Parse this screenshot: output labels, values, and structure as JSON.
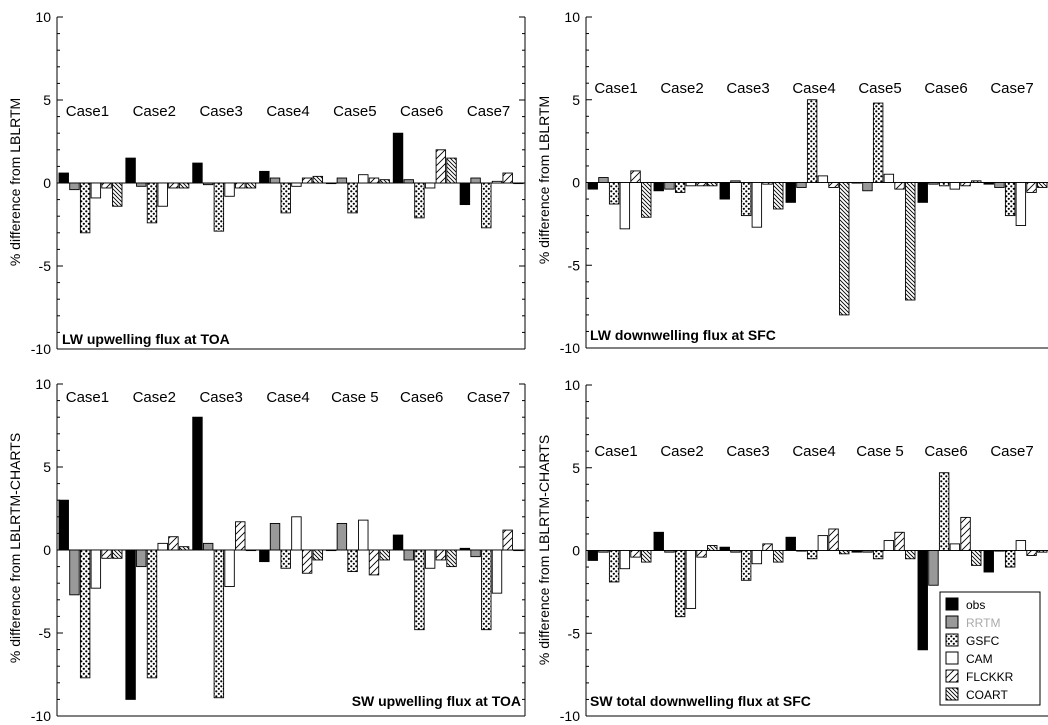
{
  "legend": [
    {
      "key": "obs",
      "label": "obs"
    },
    {
      "key": "rrtm",
      "label": "RRTM"
    },
    {
      "key": "gsfc",
      "label": "GSFC"
    },
    {
      "key": "cam",
      "label": "CAM"
    },
    {
      "key": "flckkr",
      "label": "FLCKKR"
    },
    {
      "key": "coart",
      "label": "COART"
    }
  ],
  "colors": {
    "obs": "#000000",
    "rrtm": "#999999",
    "legend_rrtm_text": "#aaaaaa",
    "axis": "#000000"
  },
  "chart_data": [
    {
      "type": "bar",
      "title": "LW upwelling flux at TOA",
      "ylabel": "% difference from LBLRTM",
      "ylim": [
        -10,
        10
      ],
      "yticks": [
        -10,
        -5,
        0,
        5,
        10
      ],
      "categories": [
        "Case1",
        "Case2",
        "Case3",
        "Case4",
        "Case5",
        "Case6",
        "Case7"
      ],
      "series": [
        {
          "name": "obs",
          "values": [
            0.6,
            1.5,
            1.2,
            0.7,
            0.0,
            3.0,
            -1.3
          ]
        },
        {
          "name": "RRTM",
          "values": [
            -0.4,
            -0.2,
            -0.1,
            0.3,
            0.3,
            0.2,
            0.3
          ]
        },
        {
          "name": "GSFC",
          "values": [
            -3.0,
            -2.4,
            -2.9,
            -1.8,
            -1.8,
            -2.1,
            -2.7
          ]
        },
        {
          "name": "CAM",
          "values": [
            -0.9,
            -1.4,
            -0.8,
            -0.2,
            0.5,
            -0.3,
            0.1
          ]
        },
        {
          "name": "FLCKKR",
          "values": [
            -0.3,
            -0.3,
            -0.3,
            0.3,
            0.3,
            2.0,
            0.6
          ]
        },
        {
          "name": "COART",
          "values": [
            -1.4,
            -0.3,
            -0.3,
            0.4,
            0.2,
            1.5,
            0.0
          ]
        }
      ]
    },
    {
      "type": "bar",
      "title": "LW downwelling flux at SFC",
      "ylabel": "% difference from LBLRTM",
      "ylim": [
        -10,
        10
      ],
      "yticks": [
        -10,
        -5,
        0,
        5,
        10
      ],
      "categories": [
        "Case1",
        "Case2",
        "Case3",
        "Case4",
        "Case5",
        "Case6",
        "Case7"
      ],
      "series": [
        {
          "name": "obs",
          "values": [
            -0.4,
            -0.5,
            -1.0,
            -1.2,
            0.0,
            -1.2,
            -0.1
          ]
        },
        {
          "name": "RRTM",
          "values": [
            0.3,
            -0.4,
            0.1,
            -0.3,
            -0.5,
            -0.1,
            -0.3
          ]
        },
        {
          "name": "GSFC",
          "values": [
            -1.3,
            -0.6,
            -2.0,
            5.0,
            4.8,
            -0.2,
            -2.0
          ]
        },
        {
          "name": "CAM",
          "values": [
            -2.8,
            -0.2,
            -2.7,
            0.4,
            0.5,
            -0.4,
            -2.6
          ]
        },
        {
          "name": "FLCKKR",
          "values": [
            0.7,
            -0.2,
            -0.1,
            -0.3,
            -0.4,
            -0.2,
            -0.6
          ]
        },
        {
          "name": "COART",
          "values": [
            -2.1,
            -0.2,
            -1.6,
            -8.0,
            -7.1,
            0.1,
            -0.3
          ]
        }
      ]
    },
    {
      "type": "bar",
      "title": "SW upwelling flux at TOA",
      "ylabel": "% difference from LBLRTM-CHARTS",
      "ylim": [
        -10,
        10
      ],
      "yticks": [
        -10,
        -5,
        0,
        5,
        10
      ],
      "categories": [
        "Case1",
        "Case2",
        "Case3",
        "Case4",
        "Case 5",
        "Case6",
        "Case7"
      ],
      "series": [
        {
          "name": "obs",
          "values": [
            3.0,
            -9.0,
            8.0,
            -0.7,
            0.0,
            0.9,
            0.1
          ]
        },
        {
          "name": "RRTM",
          "values": [
            -2.7,
            -1.0,
            0.4,
            1.6,
            1.6,
            -0.6,
            -0.4
          ]
        },
        {
          "name": "GSFC",
          "values": [
            -7.7,
            -7.7,
            -8.9,
            -1.1,
            -1.3,
            -4.8,
            -4.8
          ]
        },
        {
          "name": "CAM",
          "values": [
            -2.3,
            0.4,
            -2.2,
            2.0,
            1.8,
            -1.1,
            -2.6
          ]
        },
        {
          "name": "FLCKKR",
          "values": [
            -0.5,
            0.8,
            1.7,
            -1.4,
            -1.5,
            -0.6,
            1.2
          ]
        },
        {
          "name": "COART",
          "values": [
            -0.5,
            0.2,
            0.0,
            -0.6,
            -0.6,
            -1.0,
            0.0
          ]
        }
      ]
    },
    {
      "type": "bar",
      "title": "SW total downwelling flux at SFC",
      "ylabel": "% difference from LBLRTM-CHARTS",
      "ylim": [
        -10,
        10
      ],
      "yticks": [
        -10,
        -5,
        0,
        5,
        10
      ],
      "categories": [
        "Case1",
        "Case2",
        "Case3",
        "Case4",
        "Case 5",
        "Case6",
        "Case7"
      ],
      "series": [
        {
          "name": "obs",
          "values": [
            -0.6,
            1.1,
            0.2,
            0.8,
            -0.1,
            -6.0,
            -1.3
          ]
        },
        {
          "name": "RRTM",
          "values": [
            -0.1,
            -0.1,
            -0.1,
            0.0,
            -0.1,
            -2.1,
            0.0
          ]
        },
        {
          "name": "GSFC",
          "values": [
            -1.9,
            -4.0,
            -1.8,
            -0.5,
            -0.5,
            4.7,
            -1.0
          ]
        },
        {
          "name": "CAM",
          "values": [
            -1.1,
            -3.5,
            -0.8,
            0.9,
            0.6,
            0.4,
            0.6
          ]
        },
        {
          "name": "FLCKKR",
          "values": [
            -0.4,
            -0.4,
            0.4,
            1.3,
            1.1,
            2.0,
            -0.3
          ]
        },
        {
          "name": "COART",
          "values": [
            -0.7,
            0.3,
            -0.7,
            -0.2,
            -0.5,
            -0.9,
            -0.1
          ]
        }
      ]
    }
  ]
}
